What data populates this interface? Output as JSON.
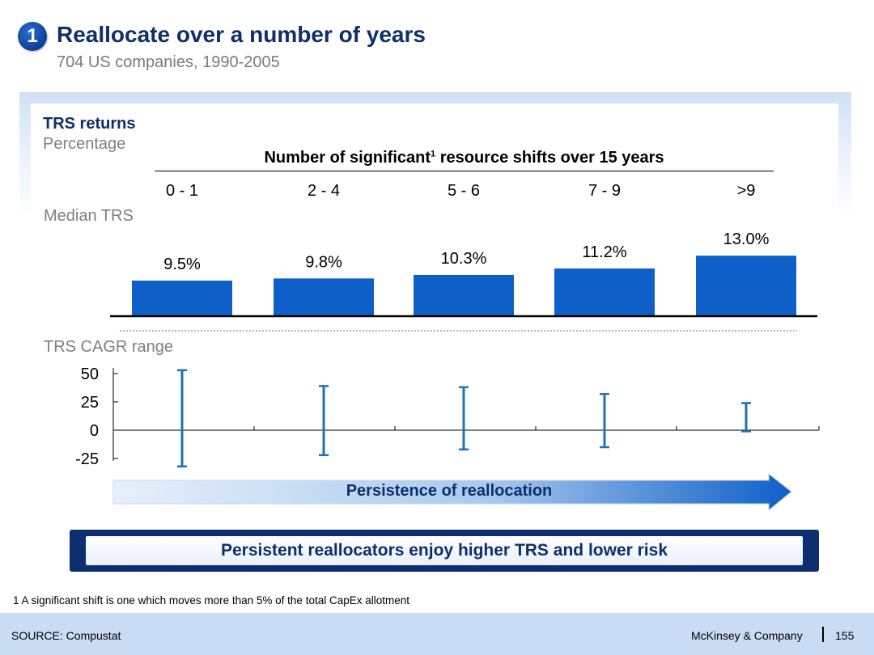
{
  "header": {
    "badge": "1",
    "title": "Reallocate over a number of years",
    "subtitle": "704 US companies, 1990-2005"
  },
  "chart_data": [
    {
      "type": "bar",
      "title": "TRS returns",
      "subtitle": "Percentage",
      "category_header": "Number of significant",
      "category_header_sup": "1",
      "category_header_rest": " resource shifts over 15 years",
      "row_label": "Median TRS",
      "categories": [
        "0 - 1",
        "2 - 4",
        "5 - 6",
        "7 - 9",
        ">9"
      ],
      "values": [
        9.5,
        9.8,
        10.3,
        11.2,
        13.0
      ],
      "value_labels": [
        "9.5%",
        "9.8%",
        "10.3%",
        "11.2%",
        "13.0%"
      ],
      "bar_color": "#0f5fc8"
    },
    {
      "type": "range",
      "row_label": "TRS CAGR range",
      "categories": [
        "0 - 1",
        "2 - 4",
        "5 - 6",
        "7 - 9",
        ">9"
      ],
      "ranges": [
        [
          -32,
          53
        ],
        [
          -22,
          39
        ],
        [
          -17,
          38
        ],
        [
          -15,
          32
        ],
        [
          -1,
          24
        ]
      ],
      "y_ticks": [
        50,
        25,
        0,
        -25
      ],
      "y_tick_labels": [
        "50",
        "25",
        "0",
        "-25"
      ],
      "ylim": [
        -25,
        50
      ],
      "line_color": "#1f72b8"
    }
  ],
  "arrow": {
    "label": "Persistence of reallocation",
    "color_start": "#e6f0fb",
    "color_end": "#0f5fc8"
  },
  "conclusion": "Persistent reallocators enjoy higher TRS and lower risk",
  "footnote": "1 A significant shift is one which moves more than 5% of the total CapEx allotment",
  "footer": {
    "source": "SOURCE: Compustat",
    "brand": "McKinsey & Company",
    "page": "155"
  },
  "colors": {
    "title": "#0d2f6b",
    "accent": "#0f5fc8",
    "footer_bg": "#c9dcf3"
  }
}
